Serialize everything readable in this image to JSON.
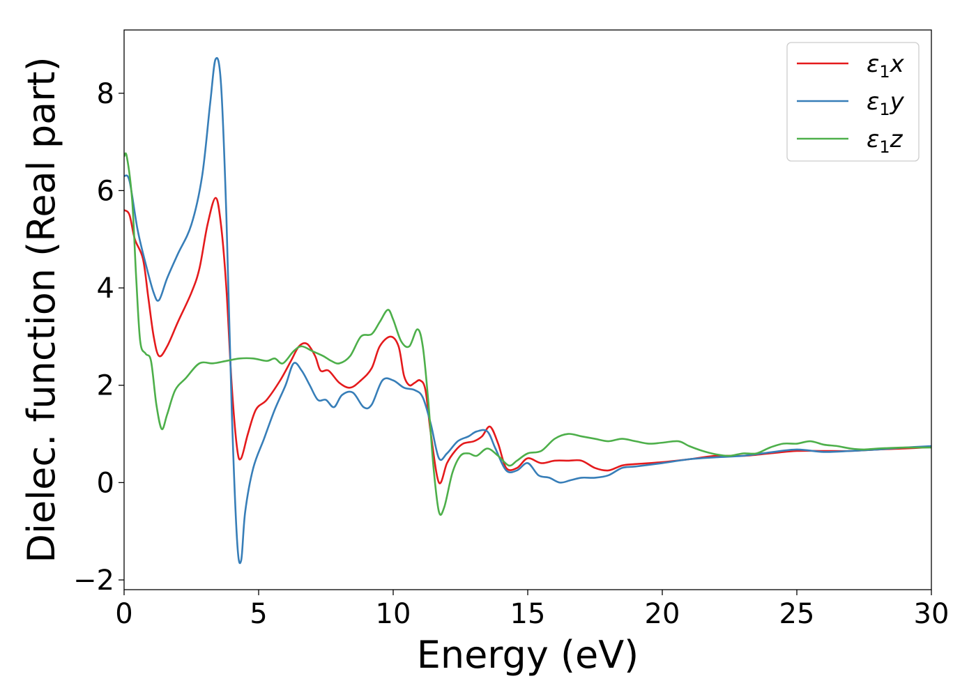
{
  "chart_data": {
    "type": "line",
    "title": "",
    "xlabel": "Energy (eV)",
    "ylabel": "Dielec. function (Real part)",
    "xlim": [
      0,
      30
    ],
    "ylim": [
      -2.2,
      9.3
    ],
    "xticks": [
      0,
      5,
      10,
      15,
      20,
      25,
      30
    ],
    "xtick_labels": [
      "0",
      "5",
      "10",
      "15",
      "20",
      "25",
      "30"
    ],
    "yticks": [
      -2,
      0,
      2,
      4,
      6,
      8
    ],
    "ytick_labels": [
      "−2",
      "0",
      "2",
      "4",
      "6",
      "8"
    ],
    "grid": false,
    "legend_position": "top-right",
    "series": [
      {
        "name": "ε₁x",
        "symbol": "ε",
        "subscript": "1",
        "axis": "x",
        "color": "#e41a1c",
        "points": [
          [
            0,
            5.6
          ],
          [
            0.2,
            5.5
          ],
          [
            0.4,
            5.0
          ],
          [
            0.7,
            4.6
          ],
          [
            0.9,
            3.8
          ],
          [
            1.1,
            3.0
          ],
          [
            1.3,
            2.6
          ],
          [
            1.6,
            2.8
          ],
          [
            2.0,
            3.3
          ],
          [
            2.5,
            3.9
          ],
          [
            2.8,
            4.4
          ],
          [
            3.1,
            5.3
          ],
          [
            3.4,
            5.85
          ],
          [
            3.6,
            5.3
          ],
          [
            3.8,
            4.0
          ],
          [
            4.0,
            2.0
          ],
          [
            4.2,
            0.7
          ],
          [
            4.35,
            0.5
          ],
          [
            4.6,
            1.0
          ],
          [
            4.9,
            1.5
          ],
          [
            5.3,
            1.7
          ],
          [
            5.8,
            2.1
          ],
          [
            6.2,
            2.5
          ],
          [
            6.5,
            2.8
          ],
          [
            6.8,
            2.85
          ],
          [
            7.1,
            2.6
          ],
          [
            7.3,
            2.3
          ],
          [
            7.6,
            2.3
          ],
          [
            8.0,
            2.05
          ],
          [
            8.4,
            1.95
          ],
          [
            8.8,
            2.1
          ],
          [
            9.2,
            2.35
          ],
          [
            9.5,
            2.8
          ],
          [
            9.9,
            3.0
          ],
          [
            10.2,
            2.8
          ],
          [
            10.4,
            2.2
          ],
          [
            10.6,
            2.0
          ],
          [
            10.8,
            2.05
          ],
          [
            11.0,
            2.1
          ],
          [
            11.2,
            1.9
          ],
          [
            11.4,
            1.0
          ],
          [
            11.7,
            0.0
          ],
          [
            12.0,
            0.4
          ],
          [
            12.3,
            0.65
          ],
          [
            12.6,
            0.8
          ],
          [
            13.0,
            0.85
          ],
          [
            13.3,
            0.95
          ],
          [
            13.6,
            1.15
          ],
          [
            13.9,
            0.8
          ],
          [
            14.2,
            0.3
          ],
          [
            14.6,
            0.3
          ],
          [
            15.0,
            0.5
          ],
          [
            15.5,
            0.4
          ],
          [
            16.0,
            0.45
          ],
          [
            16.5,
            0.45
          ],
          [
            17.0,
            0.45
          ],
          [
            17.5,
            0.3
          ],
          [
            18.0,
            0.25
          ],
          [
            18.5,
            0.35
          ],
          [
            19.0,
            0.38
          ],
          [
            20.0,
            0.42
          ],
          [
            21.0,
            0.48
          ],
          [
            22.0,
            0.55
          ],
          [
            23.0,
            0.55
          ],
          [
            24.0,
            0.6
          ],
          [
            25.0,
            0.65
          ],
          [
            26.0,
            0.65
          ],
          [
            27.0,
            0.65
          ],
          [
            28.0,
            0.68
          ],
          [
            29.0,
            0.7
          ],
          [
            30.0,
            0.73
          ]
        ]
      },
      {
        "name": "ε₁y",
        "symbol": "ε",
        "subscript": "1",
        "axis": "y",
        "color": "#377eb8",
        "points": [
          [
            0,
            6.3
          ],
          [
            0.2,
            6.2
          ],
          [
            0.5,
            5.2
          ],
          [
            0.8,
            4.5
          ],
          [
            1.1,
            3.9
          ],
          [
            1.3,
            3.75
          ],
          [
            1.6,
            4.2
          ],
          [
            2.0,
            4.7
          ],
          [
            2.5,
            5.3
          ],
          [
            2.9,
            6.3
          ],
          [
            3.2,
            7.8
          ],
          [
            3.4,
            8.7
          ],
          [
            3.6,
            8.2
          ],
          [
            3.8,
            5.5
          ],
          [
            4.0,
            1.5
          ],
          [
            4.2,
            -1.2
          ],
          [
            4.35,
            -1.6
          ],
          [
            4.5,
            -0.6
          ],
          [
            4.8,
            0.3
          ],
          [
            5.2,
            0.9
          ],
          [
            5.6,
            1.5
          ],
          [
            6.0,
            2.0
          ],
          [
            6.3,
            2.45
          ],
          [
            6.6,
            2.3
          ],
          [
            6.9,
            2.0
          ],
          [
            7.2,
            1.7
          ],
          [
            7.5,
            1.7
          ],
          [
            7.8,
            1.55
          ],
          [
            8.1,
            1.8
          ],
          [
            8.5,
            1.85
          ],
          [
            8.9,
            1.55
          ],
          [
            9.2,
            1.6
          ],
          [
            9.6,
            2.1
          ],
          [
            10.0,
            2.1
          ],
          [
            10.4,
            1.95
          ],
          [
            10.8,
            1.9
          ],
          [
            11.1,
            1.75
          ],
          [
            11.4,
            1.2
          ],
          [
            11.7,
            0.5
          ],
          [
            12.0,
            0.6
          ],
          [
            12.4,
            0.85
          ],
          [
            12.8,
            0.95
          ],
          [
            13.1,
            1.05
          ],
          [
            13.5,
            1.05
          ],
          [
            13.8,
            0.7
          ],
          [
            14.2,
            0.25
          ],
          [
            14.6,
            0.25
          ],
          [
            15.0,
            0.4
          ],
          [
            15.4,
            0.15
          ],
          [
            15.8,
            0.1
          ],
          [
            16.2,
            0.0
          ],
          [
            16.6,
            0.05
          ],
          [
            17.0,
            0.1
          ],
          [
            17.5,
            0.1
          ],
          [
            18.0,
            0.15
          ],
          [
            18.5,
            0.3
          ],
          [
            19.0,
            0.33
          ],
          [
            20.0,
            0.4
          ],
          [
            21.0,
            0.48
          ],
          [
            22.0,
            0.52
          ],
          [
            23.0,
            0.55
          ],
          [
            24.0,
            0.62
          ],
          [
            25.0,
            0.68
          ],
          [
            26.0,
            0.63
          ],
          [
            27.0,
            0.65
          ],
          [
            28.0,
            0.68
          ],
          [
            29.0,
            0.72
          ],
          [
            30.0,
            0.75
          ]
        ]
      },
      {
        "name": "ε₁z",
        "symbol": "ε",
        "subscript": "1",
        "axis": "z",
        "color": "#4daf4a",
        "points": [
          [
            0,
            6.7
          ],
          [
            0.1,
            6.7
          ],
          [
            0.3,
            5.8
          ],
          [
            0.45,
            4.2
          ],
          [
            0.6,
            2.9
          ],
          [
            0.8,
            2.65
          ],
          [
            1.0,
            2.5
          ],
          [
            1.2,
            1.6
          ],
          [
            1.4,
            1.1
          ],
          [
            1.6,
            1.4
          ],
          [
            1.9,
            1.9
          ],
          [
            2.3,
            2.15
          ],
          [
            2.8,
            2.45
          ],
          [
            3.3,
            2.45
          ],
          [
            3.8,
            2.5
          ],
          [
            4.3,
            2.55
          ],
          [
            4.8,
            2.55
          ],
          [
            5.3,
            2.5
          ],
          [
            5.6,
            2.55
          ],
          [
            5.9,
            2.45
          ],
          [
            6.3,
            2.7
          ],
          [
            6.6,
            2.8
          ],
          [
            7.0,
            2.7
          ],
          [
            7.4,
            2.6
          ],
          [
            7.7,
            2.5
          ],
          [
            8.0,
            2.45
          ],
          [
            8.4,
            2.6
          ],
          [
            8.8,
            3.0
          ],
          [
            9.2,
            3.05
          ],
          [
            9.5,
            3.3
          ],
          [
            9.8,
            3.55
          ],
          [
            10.0,
            3.35
          ],
          [
            10.3,
            2.9
          ],
          [
            10.6,
            2.8
          ],
          [
            10.9,
            3.15
          ],
          [
            11.1,
            2.8
          ],
          [
            11.3,
            1.7
          ],
          [
            11.5,
            0.3
          ],
          [
            11.7,
            -0.6
          ],
          [
            11.9,
            -0.5
          ],
          [
            12.2,
            0.2
          ],
          [
            12.5,
            0.55
          ],
          [
            12.8,
            0.6
          ],
          [
            13.1,
            0.55
          ],
          [
            13.5,
            0.7
          ],
          [
            13.9,
            0.55
          ],
          [
            14.3,
            0.35
          ],
          [
            14.6,
            0.45
          ],
          [
            15.0,
            0.6
          ],
          [
            15.5,
            0.65
          ],
          [
            16.0,
            0.9
          ],
          [
            16.5,
            1.0
          ],
          [
            17.0,
            0.95
          ],
          [
            17.5,
            0.9
          ],
          [
            18.0,
            0.85
          ],
          [
            18.5,
            0.9
          ],
          [
            19.0,
            0.85
          ],
          [
            19.5,
            0.8
          ],
          [
            20.0,
            0.82
          ],
          [
            20.6,
            0.85
          ],
          [
            21.0,
            0.75
          ],
          [
            21.5,
            0.65
          ],
          [
            22.0,
            0.58
          ],
          [
            22.5,
            0.55
          ],
          [
            23.0,
            0.6
          ],
          [
            23.5,
            0.6
          ],
          [
            24.0,
            0.72
          ],
          [
            24.5,
            0.8
          ],
          [
            25.0,
            0.8
          ],
          [
            25.5,
            0.85
          ],
          [
            26.0,
            0.78
          ],
          [
            26.5,
            0.75
          ],
          [
            27.0,
            0.7
          ],
          [
            27.5,
            0.68
          ],
          [
            28.0,
            0.7
          ],
          [
            29.0,
            0.72
          ],
          [
            30.0,
            0.72
          ]
        ]
      }
    ]
  }
}
